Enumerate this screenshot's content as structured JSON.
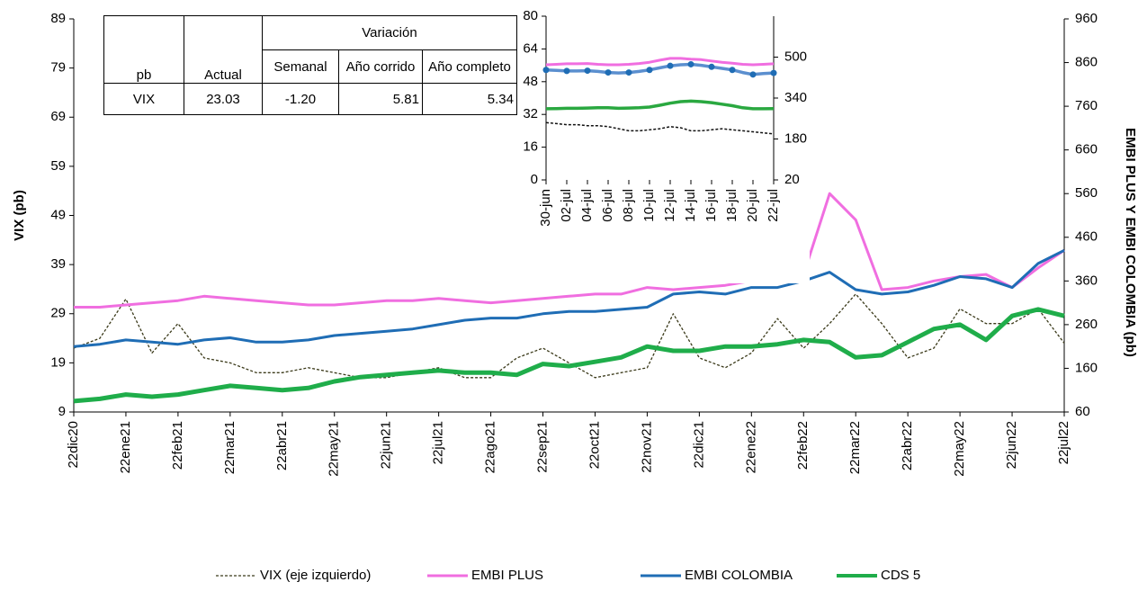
{
  "chart_data": [
    {
      "type": "line",
      "ylabel": "VIX  (pb)",
      "y2label": "EMBI PLUS Y EMBI COLOMBIA  (pb)",
      "categories": [
        "22dic20",
        null,
        "22ene21",
        null,
        "22feb21",
        null,
        "22mar21",
        null,
        "22abr21",
        null,
        "22may21",
        null,
        "22jun21",
        null,
        "22jul21",
        null,
        "22ago21",
        null,
        "22sep21",
        null,
        "22oct21",
        null,
        "22nov21",
        null,
        "22dic21",
        null,
        "22ene22",
        null,
        "22feb22",
        null,
        "22mar22",
        null,
        "22abr22",
        null,
        "22may22",
        null,
        "22jun22",
        null,
        "22jul22"
      ],
      "ylim": [
        9,
        89
      ],
      "yticks": [
        9,
        19,
        29,
        39,
        49,
        59,
        69,
        79,
        89
      ],
      "y2lim": [
        60,
        960
      ],
      "y2ticks": [
        60,
        160,
        260,
        360,
        460,
        560,
        660,
        760,
        860,
        960
      ],
      "legend": "bottom",
      "series": [
        {
          "name": "VIX (eje izquierdo)",
          "color": "#3b3a1a",
          "dash": true,
          "width": 1.3,
          "values": [
            22,
            24,
            32,
            21,
            27,
            20,
            19,
            17,
            17,
            18,
            17,
            16,
            16,
            17,
            18,
            16,
            16,
            20,
            22,
            19,
            16,
            17,
            18,
            29,
            20,
            18,
            21,
            28,
            22,
            27,
            33,
            27,
            20,
            22,
            30,
            27,
            27,
            30,
            23
          ]
        },
        {
          "name": "EMBI PLUS",
          "color": "#f06ee0",
          "axis": "y2",
          "width": 3,
          "values": [
            300,
            300,
            305,
            310,
            315,
            325,
            320,
            315,
            310,
            305,
            305,
            310,
            315,
            315,
            320,
            315,
            310,
            315,
            320,
            325,
            330,
            330,
            345,
            340,
            345,
            350,
            360,
            360,
            375,
            560,
            500,
            340,
            345,
            360,
            370,
            375,
            345,
            390,
            430
          ]
        },
        {
          "name": "EMBI COLOMBIA",
          "color": "#1f6db5",
          "axis": "y2",
          "width": 3,
          "values": [
            210,
            215,
            225,
            220,
            215,
            225,
            230,
            220,
            220,
            225,
            235,
            240,
            245,
            250,
            260,
            270,
            275,
            275,
            285,
            290,
            290,
            295,
            300,
            330,
            335,
            330,
            345,
            345,
            360,
            380,
            340,
            330,
            335,
            350,
            370,
            365,
            345,
            400,
            430
          ]
        },
        {
          "name": "CDS 5",
          "color": "#1fad4a",
          "axis": "y2",
          "width": 5,
          "values": [
            85,
            90,
            100,
            95,
            100,
            110,
            120,
            115,
            110,
            115,
            130,
            140,
            145,
            150,
            155,
            150,
            150,
            145,
            170,
            165,
            175,
            185,
            210,
            200,
            200,
            210,
            210,
            215,
            225,
            220,
            185,
            190,
            220,
            250,
            260,
            225,
            280,
            295,
            280
          ]
        }
      ],
      "table": {
        "header": [
          "pb",
          "Actual",
          "Variación"
        ],
        "subheader": [
          "Semanal",
          "Año corrido",
          "Año completo"
        ],
        "rows": [
          [
            "VIX",
            "23.03",
            "-1.20",
            "5.81",
            "5.34"
          ]
        ]
      }
    },
    {
      "type": "line",
      "categories": [
        "30-jun",
        null,
        "02-jul",
        null,
        "04-jul",
        null,
        "06-jul",
        null,
        "08-jul",
        null,
        "10-jul",
        null,
        "12-jul",
        null,
        "14-jul",
        null,
        "16-jul",
        null,
        "18-jul",
        null,
        "20-jul",
        null,
        "22-jul"
      ],
      "ylim": [
        0,
        80
      ],
      "yticks": [
        0,
        16,
        32,
        48,
        64,
        80
      ],
      "y2lim": [
        20,
        660
      ],
      "y2ticks": [
        20,
        180,
        340,
        500
      ],
      "series": [
        {
          "color": "#111111",
          "dash": true,
          "width": 1.5,
          "values": [
            28,
            27.5,
            27,
            27,
            26.5,
            26.5,
            26,
            25,
            24,
            24,
            24.5,
            25,
            26,
            25.5,
            24,
            24,
            24.5,
            25,
            24.5,
            24,
            23.5,
            23,
            22.5
          ]
        },
        {
          "color": "#f06ee0",
          "axis": "y2",
          "width": 3,
          "values": [
            470,
            472,
            474,
            474,
            475,
            472,
            470,
            470,
            472,
            475,
            480,
            488,
            495,
            495,
            492,
            490,
            485,
            480,
            476,
            472,
            470,
            472,
            474
          ]
        },
        {
          "color": "#5b8fcf",
          "axis": "y2",
          "width": 3.5,
          "markers": true,
          "marker_color": "#1f6db5",
          "values": [
            450,
            448,
            446,
            446,
            447,
            444,
            440,
            438,
            440,
            444,
            450,
            458,
            466,
            470,
            472,
            468,
            462,
            456,
            450,
            440,
            432,
            436,
            438
          ]
        },
        {
          "color": "#2aa840",
          "axis": "y2",
          "width": 3.5,
          "values": [
            298,
            299,
            300,
            300,
            301,
            302,
            302,
            300,
            301,
            302,
            305,
            312,
            320,
            326,
            328,
            326,
            322,
            316,
            310,
            302,
            298,
            298,
            299
          ]
        }
      ]
    }
  ]
}
